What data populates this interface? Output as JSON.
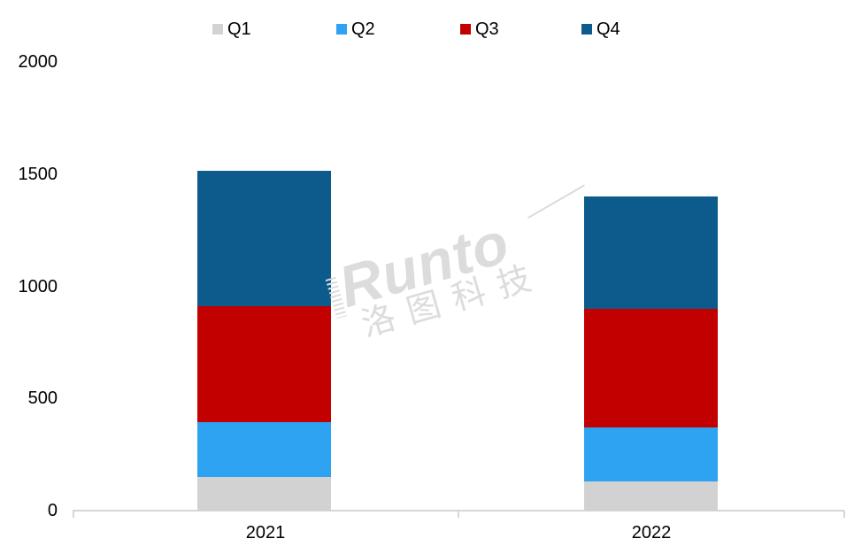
{
  "legend": [
    {
      "label": "Q1",
      "color": "#d2d2d2"
    },
    {
      "label": "Q2",
      "color": "#2ea3f2"
    },
    {
      "label": "Q3",
      "color": "#c20000"
    },
    {
      "label": "Q4",
      "color": "#0d5a8c"
    }
  ],
  "watermark": {
    "brand": "Runto",
    "cn": "洛图科技"
  },
  "chart_data": {
    "type": "bar",
    "stacked": true,
    "title": "",
    "xlabel": "",
    "ylabel": "",
    "categories": [
      "2021",
      "2022"
    ],
    "series": [
      {
        "name": "Q1",
        "color": "#d2d2d2",
        "values": [
          148,
          132
        ]
      },
      {
        "name": "Q2",
        "color": "#2ea3f2",
        "values": [
          247,
          237
        ]
      },
      {
        "name": "Q3",
        "color": "#c20000",
        "values": [
          517,
          529
        ]
      },
      {
        "name": "Q4",
        "color": "#0d5a8c",
        "values": [
          601,
          503
        ]
      }
    ],
    "totals": [
      1513,
      1401
    ],
    "ylim": [
      0,
      2000
    ],
    "yticks": [
      0,
      500,
      1000,
      1500,
      2000
    ],
    "grid": false,
    "legend_position": "top",
    "axis_color": "#d6d6d6"
  }
}
